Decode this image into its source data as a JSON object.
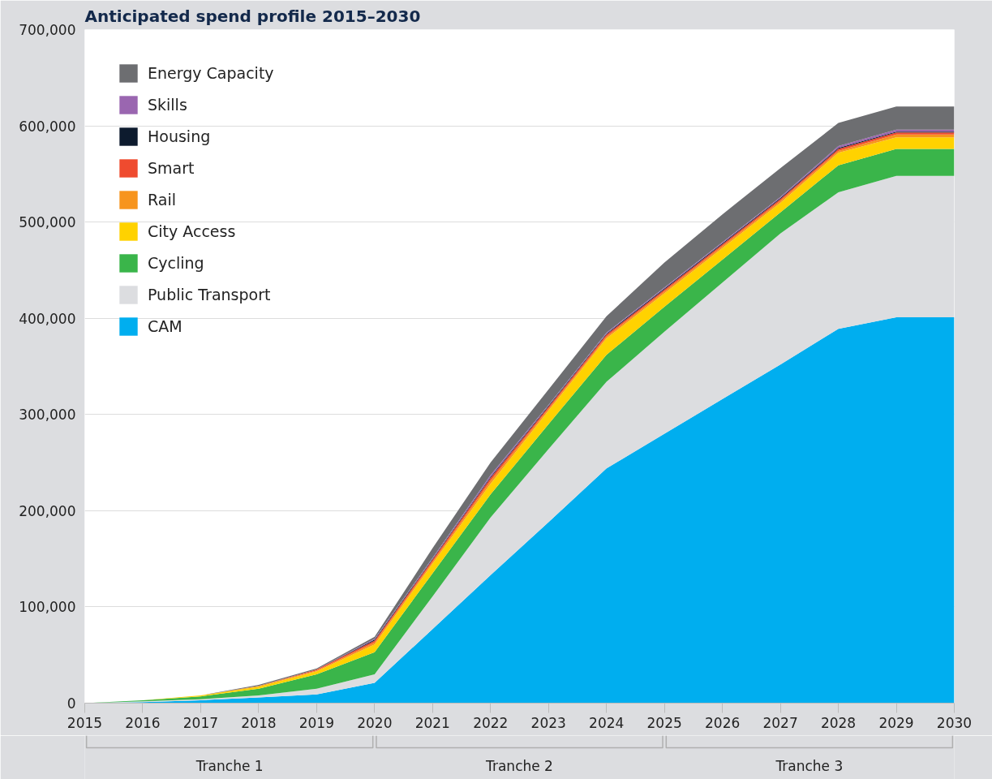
{
  "chart_data": {
    "type": "area",
    "stacked": true,
    "title": "Anticipated spend profile 2015–2030",
    "x": [
      2015,
      2016,
      2017,
      2018,
      2019,
      2020,
      2021,
      2022,
      2023,
      2024,
      2025,
      2026,
      2027,
      2028,
      2029,
      2030
    ],
    "series": [
      {
        "name": "CAM",
        "color": "#00aeef",
        "values": [
          0,
          1000,
          3000,
          6000,
          9000,
          21000,
          77000,
          133000,
          188000,
          244000,
          280000,
          316000,
          352000,
          389000,
          401000,
          401000
        ]
      },
      {
        "name": "Public Transport",
        "color": "#dcdde0",
        "values": [
          0,
          1000,
          1000,
          2000,
          6000,
          9000,
          34000,
          60000,
          76000,
          90000,
          106000,
          121000,
          136000,
          142000,
          147000,
          147000
        ]
      },
      {
        "name": "Cycling",
        "color": "#3ab54a",
        "values": [
          0,
          1000,
          3000,
          7000,
          15000,
          23000,
          24000,
          24000,
          26000,
          28000,
          26000,
          24000,
          22000,
          28000,
          28000,
          28000
        ]
      },
      {
        "name": "City Access",
        "color": "#ffd200",
        "values": [
          0,
          0,
          1000,
          2000,
          3000,
          8000,
          10000,
          11000,
          14000,
          17000,
          14000,
          12000,
          10000,
          13000,
          12000,
          12000
        ]
      },
      {
        "name": "Rail",
        "color": "#f7941d",
        "values": [
          0,
          0,
          0,
          1000,
          1000,
          2000,
          2000,
          3000,
          2000,
          2000,
          2000,
          2000,
          2000,
          2000,
          3000,
          3000
        ]
      },
      {
        "name": "Smart",
        "color": "#ef4b2f",
        "values": [
          0,
          0,
          0,
          0,
          1000,
          2000,
          2000,
          3000,
          2000,
          2000,
          2000,
          2000,
          2000,
          2000,
          2000,
          2000
        ]
      },
      {
        "name": "Housing",
        "color": "#0d1b2e",
        "values": [
          0,
          0,
          0,
          0,
          0,
          1000,
          1000,
          1000,
          1000,
          1000,
          1000,
          1000,
          1000,
          1000,
          1000,
          1000
        ]
      },
      {
        "name": "Skills",
        "color": "#9a66b0",
        "values": [
          0,
          0,
          0,
          0,
          0,
          1000,
          1000,
          2000,
          1000,
          1000,
          1000,
          1000,
          1000,
          2000,
          2000,
          2000
        ]
      },
      {
        "name": "Energy Capacity",
        "color": "#6d6e71",
        "values": [
          0,
          0,
          0,
          1000,
          1000,
          2000,
          10000,
          13000,
          16000,
          17000,
          26000,
          29000,
          30000,
          24000,
          24000,
          24000
        ]
      }
    ],
    "xlim": [
      2015,
      2030
    ],
    "xticks": [
      2015,
      2016,
      2017,
      2018,
      2019,
      2020,
      2021,
      2022,
      2023,
      2024,
      2025,
      2026,
      2027,
      2028,
      2029,
      2030
    ],
    "ylim": [
      0,
      700000
    ],
    "yticks": [
      {
        "value": 0,
        "label": "0"
      },
      {
        "value": 100000,
        "label": "100,000"
      },
      {
        "value": 200000,
        "label": "200,000"
      },
      {
        "value": 300000,
        "label": "300,000"
      },
      {
        "value": 400000,
        "label": "400,000"
      },
      {
        "value": 500000,
        "label": "500,000"
      },
      {
        "value": 600000,
        "label": "600,000"
      },
      {
        "value": 700000,
        "label": "700,000"
      }
    ],
    "annotations": [
      "Tranche 1",
      "Tranche 2",
      "Tranche 3"
    ],
    "grid": "y",
    "legend": "top left"
  }
}
